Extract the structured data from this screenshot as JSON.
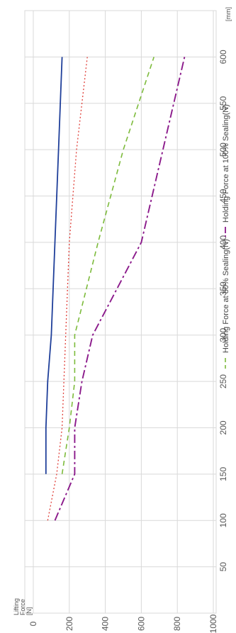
{
  "chart_data": {
    "type": "line",
    "ylabel_lines": [
      "Lifting",
      "Force",
      "[N]"
    ],
    "xunit": "[mm]",
    "xlim": [
      0,
      650
    ],
    "ylim": [
      0,
      1000
    ],
    "xticks": [
      50,
      100,
      150,
      200,
      250,
      300,
      350,
      400,
      450,
      500,
      550,
      600
    ],
    "yticks": [
      0,
      200,
      400,
      600,
      800,
      1000
    ],
    "grid": true,
    "rotation": "chart rotated 90 degrees clockwise",
    "legend_entries": [
      "Holding Force at 80% Sealing(N)",
      "Holding Force at 100% Sealing(N)"
    ],
    "series": [
      {
        "color": "#8B1A8B",
        "style": "dash-dot",
        "name": "Holding Force at 100% Sealing(N)",
        "x": [
          100,
          150,
          200,
          250,
          300,
          400,
          500,
          600
        ],
        "y": [
          120,
          230,
          230,
          270,
          330,
          600,
          720,
          840
        ]
      },
      {
        "color": "#7DBB3C",
        "style": "dashed",
        "name": "Holding Force at 80% Sealing(N)",
        "x": [
          150,
          200,
          250,
          300,
          400,
          500,
          600
        ],
        "y": [
          160,
          200,
          230,
          230,
          360,
          500,
          670
        ]
      },
      {
        "color": "#E0403A",
        "style": "dotted",
        "x": [
          100,
          150,
          200,
          300,
          400,
          500,
          600
        ],
        "y": [
          80,
          130,
          160,
          180,
          200,
          240,
          300
        ]
      },
      {
        "color": "#1F3F9A",
        "style": "solid",
        "x": [
          150,
          200,
          250,
          300,
          400,
          500,
          600
        ],
        "y": [
          70,
          70,
          80,
          100,
          120,
          140,
          160
        ]
      }
    ]
  }
}
